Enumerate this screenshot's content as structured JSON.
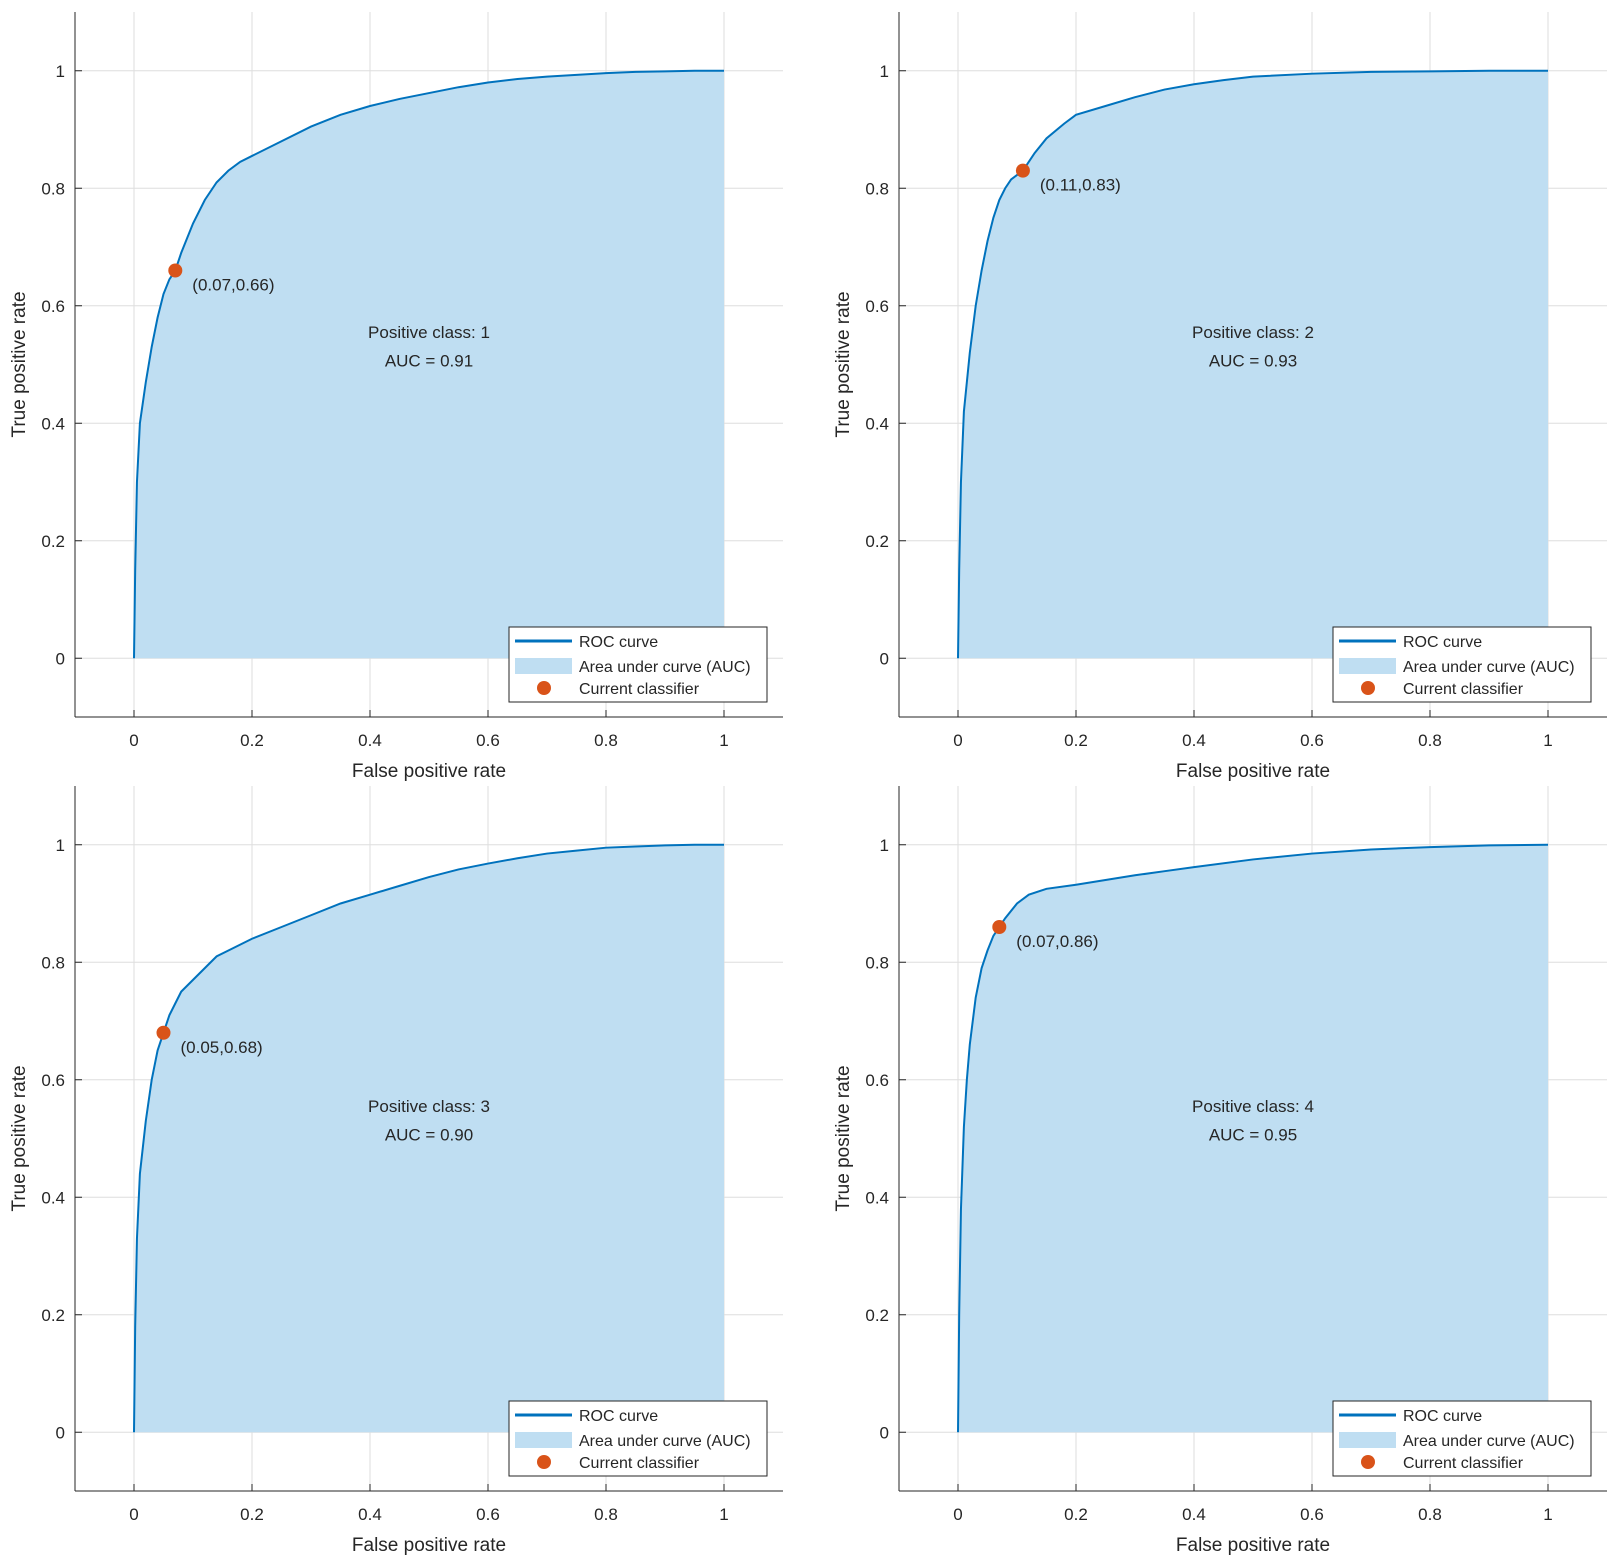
{
  "chart_data": [
    {
      "type": "line",
      "xlabel": "False positive rate",
      "ylabel": "True positive rate",
      "xlim": [
        -0.1,
        1.1
      ],
      "ylim": [
        -0.1,
        1.1
      ],
      "xticks": [
        "0",
        "0.2",
        "0.4",
        "0.6",
        "0.8",
        "1"
      ],
      "yticks": [
        "0",
        "0.2",
        "0.4",
        "0.6",
        "0.8",
        "1"
      ],
      "grid": true,
      "legend_position": "bottom-right",
      "legend": [
        "ROC curve",
        "Area under curve (AUC)",
        "Current classifier"
      ],
      "class_label": "Positive class: 1",
      "auc_label": "AUC = 0.91",
      "operating_point": {
        "x": 0.07,
        "y": 0.66,
        "label": "(0.07,0.66)"
      },
      "series": [
        {
          "x": [
            0,
            0.002,
            0.005,
            0.01,
            0.02,
            0.03,
            0.04,
            0.05,
            0.06,
            0.07,
            0.08,
            0.1,
            0.12,
            0.14,
            0.16,
            0.18,
            0.2,
            0.25,
            0.3,
            0.35,
            0.4,
            0.45,
            0.5,
            0.55,
            0.6,
            0.65,
            0.7,
            0.75,
            0.8,
            0.85,
            0.9,
            0.95,
            1.0
          ],
          "y": [
            0,
            0.15,
            0.3,
            0.4,
            0.47,
            0.53,
            0.58,
            0.62,
            0.645,
            0.66,
            0.69,
            0.74,
            0.78,
            0.81,
            0.83,
            0.845,
            0.855,
            0.88,
            0.905,
            0.925,
            0.94,
            0.952,
            0.962,
            0.972,
            0.98,
            0.986,
            0.99,
            0.993,
            0.996,
            0.998,
            0.999,
            1.0,
            1.0
          ]
        }
      ]
    },
    {
      "type": "line",
      "xlabel": "False positive rate",
      "ylabel": "True positive rate",
      "xlim": [
        -0.1,
        1.1
      ],
      "ylim": [
        -0.1,
        1.1
      ],
      "xticks": [
        "0",
        "0.2",
        "0.4",
        "0.6",
        "0.8",
        "1"
      ],
      "yticks": [
        "0",
        "0.2",
        "0.4",
        "0.6",
        "0.8",
        "1"
      ],
      "grid": true,
      "legend_position": "bottom-right",
      "legend": [
        "ROC curve",
        "Area under curve (AUC)",
        "Current classifier"
      ],
      "class_label": "Positive class: 2",
      "auc_label": "AUC = 0.93",
      "operating_point": {
        "x": 0.11,
        "y": 0.83,
        "label": "(0.11,0.83)"
      },
      "series": [
        {
          "x": [
            0,
            0.002,
            0.005,
            0.01,
            0.02,
            0.03,
            0.04,
            0.05,
            0.06,
            0.07,
            0.08,
            0.09,
            0.11,
            0.13,
            0.15,
            0.18,
            0.2,
            0.25,
            0.3,
            0.35,
            0.4,
            0.45,
            0.5,
            0.6,
            0.7,
            0.8,
            0.9,
            1.0
          ],
          "y": [
            0,
            0.15,
            0.3,
            0.42,
            0.52,
            0.6,
            0.66,
            0.71,
            0.75,
            0.78,
            0.8,
            0.815,
            0.83,
            0.86,
            0.885,
            0.91,
            0.925,
            0.94,
            0.955,
            0.968,
            0.977,
            0.984,
            0.99,
            0.995,
            0.998,
            0.999,
            1.0,
            1.0
          ]
        }
      ]
    },
    {
      "type": "line",
      "xlabel": "False positive rate",
      "ylabel": "True positive rate",
      "xlim": [
        -0.1,
        1.1
      ],
      "ylim": [
        -0.1,
        1.1
      ],
      "xticks": [
        "0",
        "0.2",
        "0.4",
        "0.6",
        "0.8",
        "1"
      ],
      "yticks": [
        "0",
        "0.2",
        "0.4",
        "0.6",
        "0.8",
        "1"
      ],
      "grid": true,
      "legend_position": "bottom-right",
      "legend": [
        "ROC curve",
        "Area under curve (AUC)",
        "Current classifier"
      ],
      "class_label": "Positive class: 3",
      "auc_label": "AUC = 0.90",
      "operating_point": {
        "x": 0.05,
        "y": 0.68,
        "label": "(0.05,0.68)"
      },
      "series": [
        {
          "x": [
            0,
            0.002,
            0.005,
            0.01,
            0.02,
            0.03,
            0.04,
            0.05,
            0.06,
            0.07,
            0.08,
            0.1,
            0.12,
            0.14,
            0.16,
            0.18,
            0.2,
            0.25,
            0.3,
            0.35,
            0.4,
            0.45,
            0.5,
            0.55,
            0.6,
            0.65,
            0.7,
            0.75,
            0.8,
            0.85,
            0.9,
            0.95,
            1.0
          ],
          "y": [
            0,
            0.18,
            0.33,
            0.44,
            0.53,
            0.6,
            0.65,
            0.68,
            0.71,
            0.73,
            0.75,
            0.77,
            0.79,
            0.81,
            0.82,
            0.83,
            0.84,
            0.86,
            0.88,
            0.9,
            0.915,
            0.93,
            0.945,
            0.958,
            0.968,
            0.977,
            0.985,
            0.99,
            0.995,
            0.997,
            0.999,
            1.0,
            1.0
          ]
        }
      ]
    },
    {
      "type": "line",
      "xlabel": "False positive rate",
      "ylabel": "True positive rate",
      "xlim": [
        -0.1,
        1.1
      ],
      "ylim": [
        -0.1,
        1.1
      ],
      "xticks": [
        "0",
        "0.2",
        "0.4",
        "0.6",
        "0.8",
        "1"
      ],
      "yticks": [
        "0",
        "0.2",
        "0.4",
        "0.6",
        "0.8",
        "1"
      ],
      "grid": true,
      "legend_position": "bottom-right",
      "legend": [
        "ROC curve",
        "Area under curve (AUC)",
        "Current classifier"
      ],
      "class_label": "Positive class: 4",
      "auc_label": "AUC = 0.95",
      "operating_point": {
        "x": 0.07,
        "y": 0.86,
        "label": "(0.07,0.86)"
      },
      "series": [
        {
          "x": [
            0,
            0.002,
            0.005,
            0.01,
            0.015,
            0.02,
            0.03,
            0.04,
            0.05,
            0.06,
            0.07,
            0.08,
            0.1,
            0.12,
            0.15,
            0.2,
            0.25,
            0.3,
            0.35,
            0.4,
            0.5,
            0.6,
            0.7,
            0.8,
            0.9,
            1.0
          ],
          "y": [
            0,
            0.2,
            0.38,
            0.52,
            0.6,
            0.66,
            0.74,
            0.79,
            0.82,
            0.845,
            0.86,
            0.875,
            0.9,
            0.915,
            0.925,
            0.932,
            0.94,
            0.948,
            0.955,
            0.962,
            0.975,
            0.985,
            0.992,
            0.996,
            0.999,
            1.0
          ]
        }
      ]
    }
  ]
}
